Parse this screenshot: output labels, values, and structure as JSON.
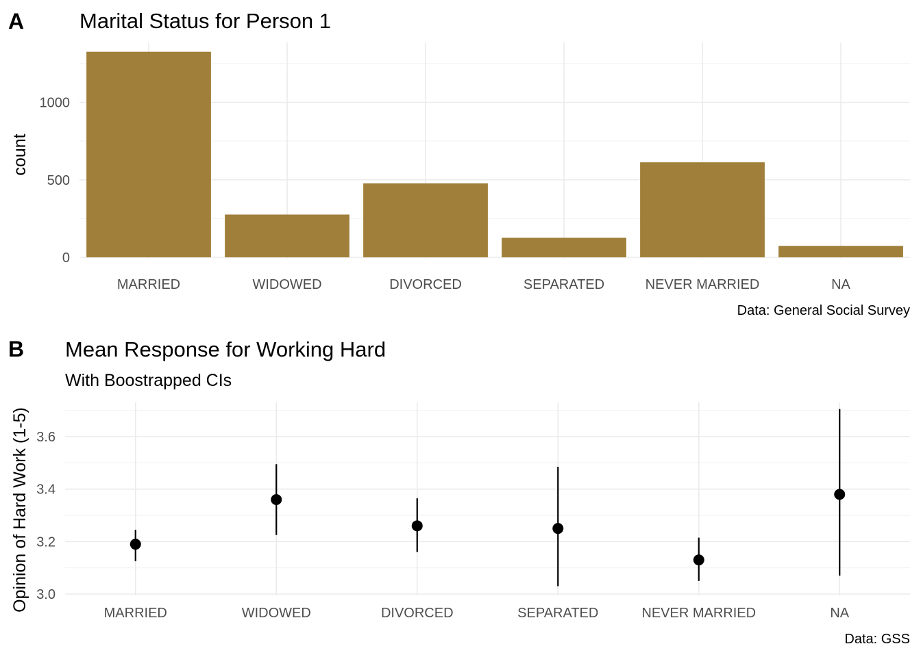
{
  "chart_data": [
    {
      "panel": "A",
      "type": "bar",
      "title": "Marital Status for Person 1",
      "subtitle": "",
      "xlabel": "",
      "ylabel": "count",
      "caption": "Data: General Social Survey",
      "categories": [
        "MARRIED",
        "WIDOWED",
        "DIVORCED",
        "SEPARATED",
        "NEVER MARRIED",
        "NA"
      ],
      "values": [
        1326,
        276,
        477,
        126,
        613,
        74
      ],
      "ylim": [
        0,
        1400
      ],
      "yticks": [
        0,
        500,
        1000
      ],
      "ytick_labels": [
        "0",
        "500",
        "1000"
      ],
      "grid": true,
      "bar_color": "#A07F3A"
    },
    {
      "panel": "B",
      "type": "scatter",
      "title": "Mean Response for Working Hard",
      "subtitle": "With Boostrapped CIs",
      "xlabel": "",
      "ylabel": "Opinion of Hard Work (1-5)",
      "caption": "Data: GSS",
      "categories": [
        "MARRIED",
        "WIDOWED",
        "DIVORCED",
        "SEPARATED",
        "NEVER MARRIED",
        "NA"
      ],
      "mean": [
        3.19,
        3.36,
        3.26,
        3.25,
        3.13,
        3.38
      ],
      "ci_low": [
        3.125,
        3.225,
        3.16,
        3.03,
        3.05,
        3.07
      ],
      "ci_high": [
        3.245,
        3.495,
        3.365,
        3.485,
        3.215,
        3.705
      ],
      "ylim": [
        3.0,
        3.7
      ],
      "yticks": [
        3.0,
        3.2,
        3.4,
        3.6
      ],
      "ytick_labels": [
        "3.0",
        "3.2",
        "3.4",
        "3.6"
      ],
      "grid": true,
      "point_color": "#000000"
    }
  ]
}
